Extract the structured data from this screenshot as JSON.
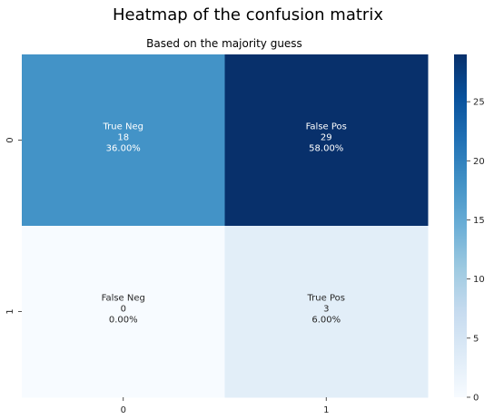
{
  "chart_data": {
    "type": "heatmap",
    "title": "Heatmap of the confusion matrix",
    "subtitle": "Based on the majority guess",
    "x_categories": [
      "0",
      "1"
    ],
    "y_categories": [
      "0",
      "1"
    ],
    "values": [
      [
        18,
        29
      ],
      [
        0,
        3
      ]
    ],
    "cell_labels": [
      [
        {
          "name": "True Neg",
          "count": "18",
          "percent": "36.00%"
        },
        {
          "name": "False Pos",
          "count": "29",
          "percent": "58.00%"
        }
      ],
      [
        {
          "name": "False Neg",
          "count": "0",
          "percent": "0.00%"
        },
        {
          "name": "True Pos",
          "count": "3",
          "percent": "6.00%"
        }
      ]
    ],
    "colormap": "Blues",
    "color_range": [
      0,
      29
    ],
    "colorbar_ticks": [
      "0",
      "5",
      "10",
      "15",
      "20",
      "25"
    ],
    "grid": false,
    "legend": "colorbar-right"
  }
}
